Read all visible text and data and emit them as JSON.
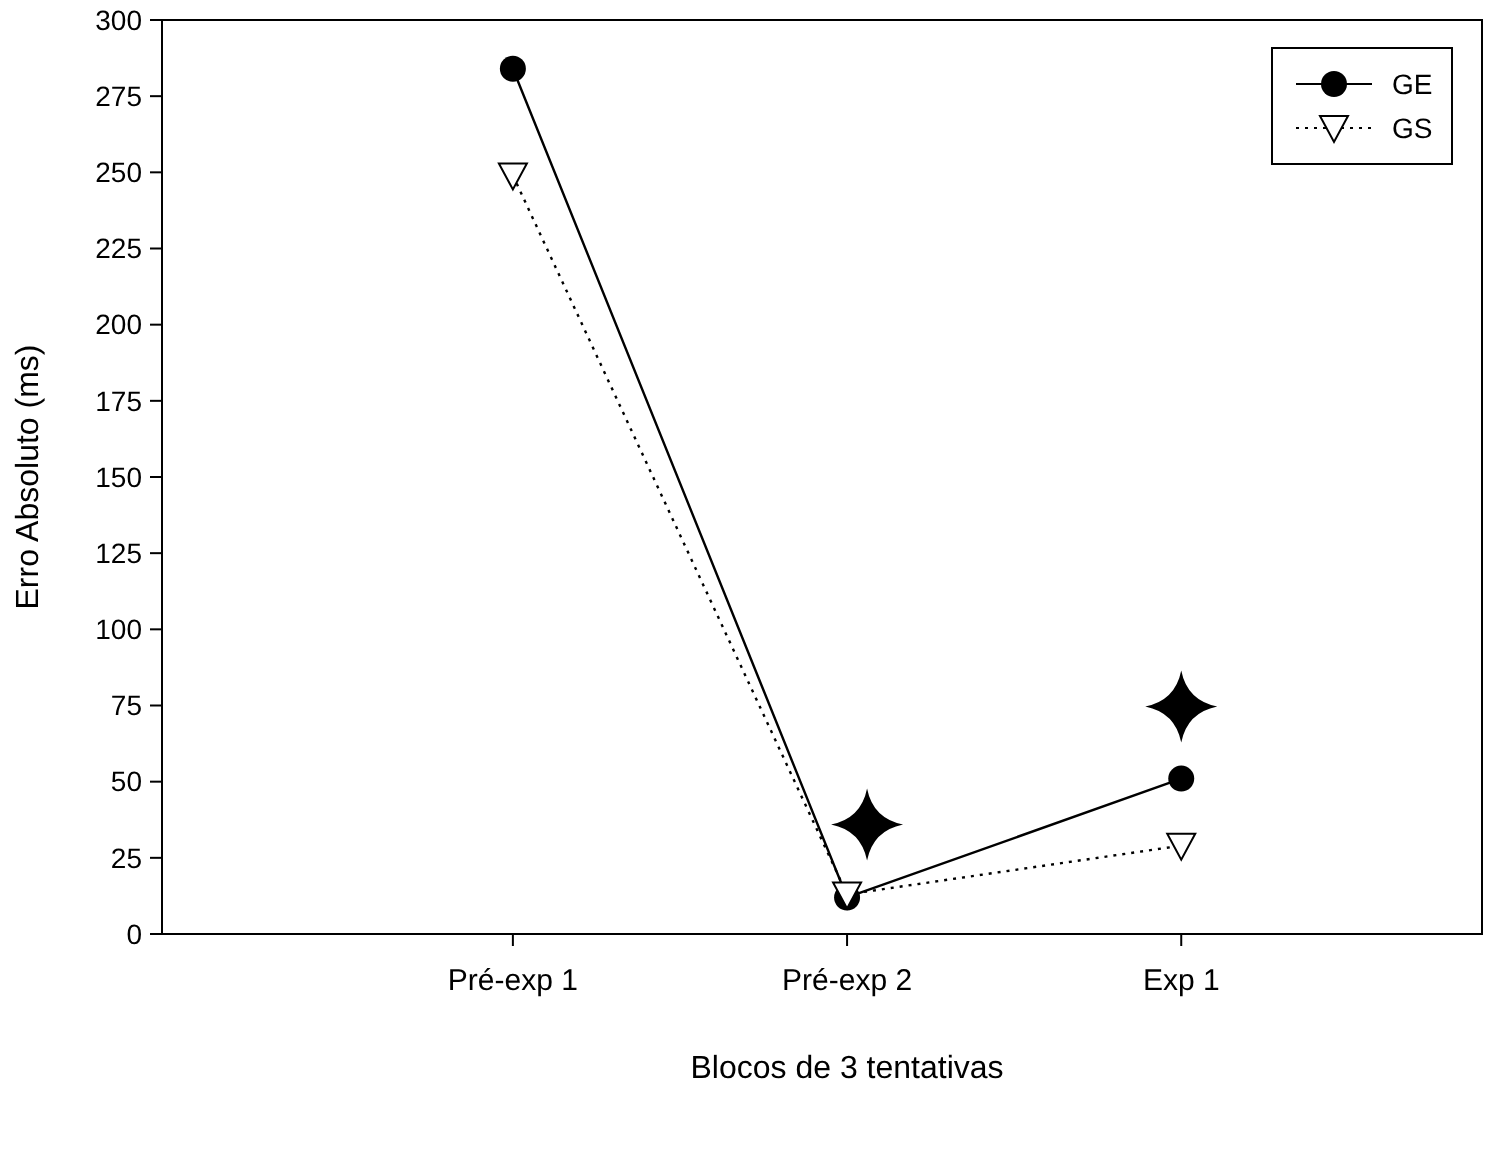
{
  "chart_data": {
    "type": "line",
    "xlabel": "Blocos de 3 tentativas",
    "ylabel": "Erro Absoluto (ms)",
    "categories": [
      "Pré-exp 1",
      "Pré-exp 2",
      "Exp 1"
    ],
    "series": [
      {
        "name": "GE",
        "color": "#000000",
        "values": [
          284,
          12,
          51
        ],
        "marker": "circle",
        "line_style": "solid"
      },
      {
        "name": "GS",
        "color": "#000000",
        "values": [
          249,
          13,
          29
        ],
        "marker": "triangle",
        "line_style": "dotted"
      }
    ],
    "ylim": [
      0,
      300
    ],
    "yticks": [
      0,
      25,
      50,
      75,
      100,
      125,
      150,
      175,
      200,
      225,
      250,
      275,
      300
    ],
    "grid": false,
    "legend": "top right"
  }
}
